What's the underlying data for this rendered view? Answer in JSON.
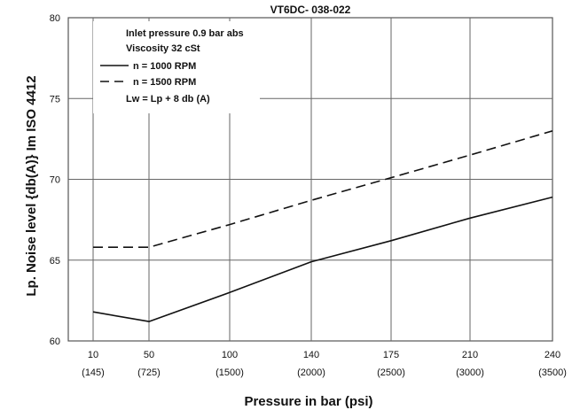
{
  "chart_data": {
    "type": "line",
    "title": "VT6DC- 038-022",
    "xlabel": "Pressure in bar (psi)",
    "ylabel": "Lp. Noise level {db(A)} Im ISO 4412",
    "x_ticks": [
      {
        "bar": "10",
        "psi": "(145)"
      },
      {
        "bar": "50",
        "psi": "(725)"
      },
      {
        "bar": "100",
        "psi": "(1500)"
      },
      {
        "bar": "140",
        "psi": "(2000)"
      },
      {
        "bar": "175",
        "psi": "(2500)"
      },
      {
        "bar": "210",
        "psi": "(3000)"
      },
      {
        "bar": "240",
        "psi": "(3500)"
      }
    ],
    "y_ticks": [
      "60",
      "65",
      "70",
      "75",
      "80"
    ],
    "ylim": [
      60,
      80
    ],
    "grid": true,
    "conditions": [
      "Inlet pressure    0.9 bar abs",
      "Viscosity   32 cSt"
    ],
    "note": "Lw  = Lp + 8 db (A)",
    "series": [
      {
        "name": "n  = 1000 RPM",
        "style": "solid",
        "color": "#111111",
        "points": [
          [
            10,
            61.8
          ],
          [
            50,
            61.2
          ],
          [
            100,
            63.0
          ],
          [
            140,
            64.9
          ],
          [
            175,
            66.2
          ],
          [
            210,
            67.6
          ],
          [
            240,
            68.9
          ]
        ]
      },
      {
        "name": "n  = 1500 RPM",
        "style": "dashed",
        "color": "#111111",
        "points": [
          [
            10,
            65.8
          ],
          [
            50,
            65.8
          ],
          [
            100,
            67.2
          ],
          [
            140,
            68.7
          ],
          [
            175,
            70.1
          ],
          [
            210,
            71.5
          ],
          [
            240,
            73.0
          ]
        ]
      }
    ]
  }
}
